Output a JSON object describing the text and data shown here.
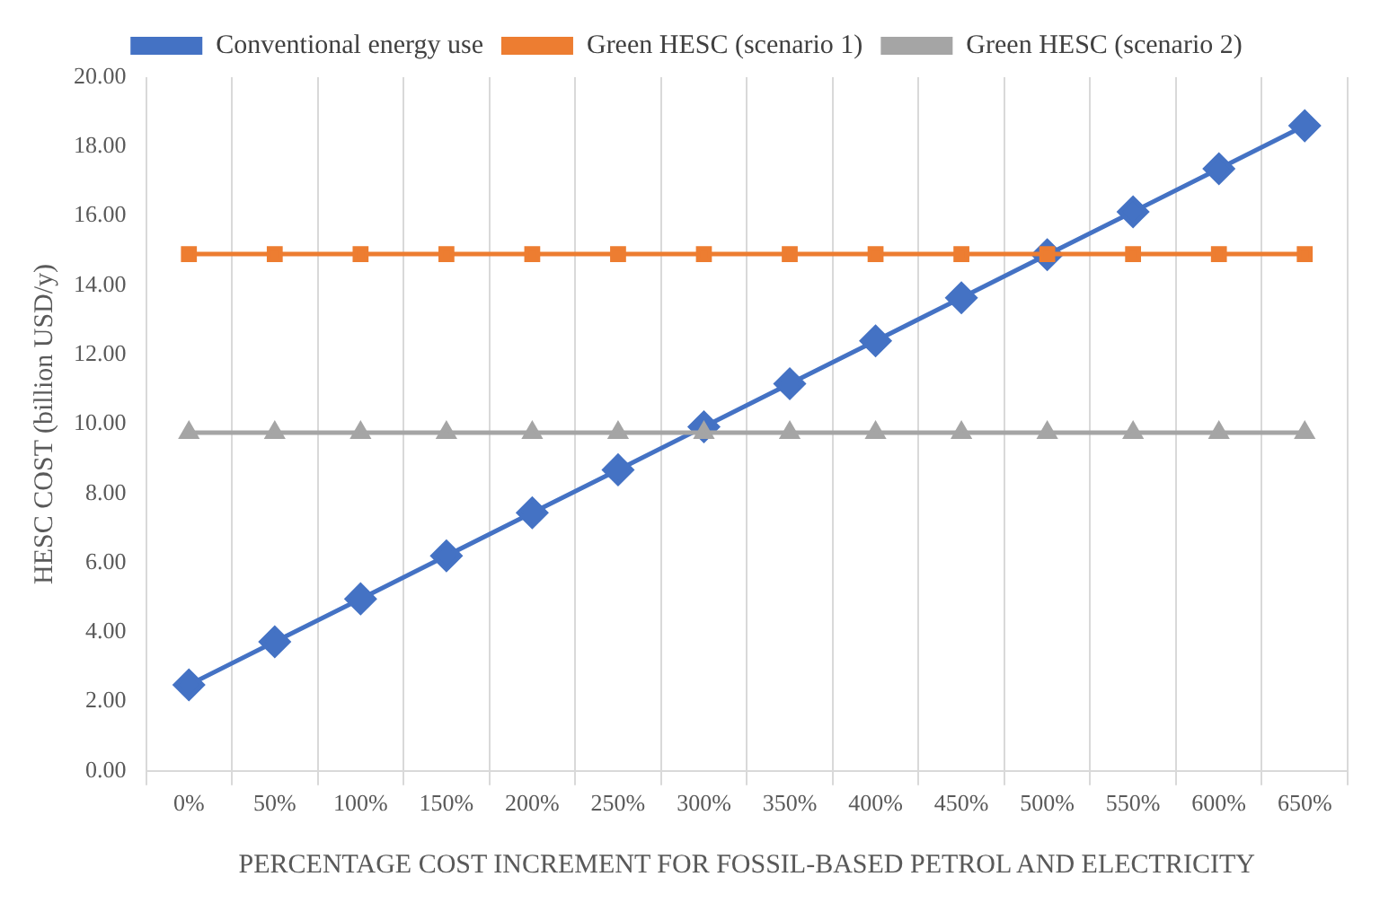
{
  "chart_data": {
    "type": "line",
    "xlabel": "PERCENTAGE COST INCREMENT FOR FOSSIL-BASED PETROL AND ELECTRICITY",
    "ylabel": "HESC COST (billion USD/y)",
    "categories": [
      "0%",
      "50%",
      "100%",
      "150%",
      "200%",
      "250%",
      "300%",
      "350%",
      "400%",
      "450%",
      "500%",
      "550%",
      "600%",
      "650%"
    ],
    "series": [
      {
        "name": "Conventional energy use",
        "color": "#4472c4",
        "marker": "diamond",
        "values": [
          2.48,
          3.72,
          4.96,
          6.2,
          7.44,
          8.68,
          9.92,
          11.16,
          12.4,
          13.64,
          14.88,
          16.12,
          17.36,
          18.6
        ]
      },
      {
        "name": "Green HESC (scenario 1)",
        "color": "#ed7d31",
        "marker": "square",
        "values": [
          14.9,
          14.9,
          14.9,
          14.9,
          14.9,
          14.9,
          14.9,
          14.9,
          14.9,
          14.9,
          14.9,
          14.9,
          14.9,
          14.9
        ]
      },
      {
        "name": "Green HESC (scenario 2)",
        "color": "#a5a5a5",
        "marker": "triangle",
        "values": [
          9.75,
          9.75,
          9.75,
          9.75,
          9.75,
          9.75,
          9.75,
          9.75,
          9.75,
          9.75,
          9.75,
          9.75,
          9.75,
          9.75
        ]
      }
    ],
    "ylim": [
      0,
      20
    ],
    "yticks": [
      {
        "value": 0,
        "label": "0.00"
      },
      {
        "value": 2,
        "label": "2.00"
      },
      {
        "value": 4,
        "label": "4.00"
      },
      {
        "value": 6,
        "label": "6.00"
      },
      {
        "value": 8,
        "label": "8.00"
      },
      {
        "value": 10,
        "label": "10.00"
      },
      {
        "value": 12,
        "label": "12.00"
      },
      {
        "value": 14,
        "label": "14.00"
      },
      {
        "value": 16,
        "label": "16.00"
      },
      {
        "value": 18,
        "label": "18.00"
      },
      {
        "value": 20,
        "label": "20.00"
      }
    ],
    "grid": "x",
    "legend": "top",
    "line_style": "solid"
  }
}
